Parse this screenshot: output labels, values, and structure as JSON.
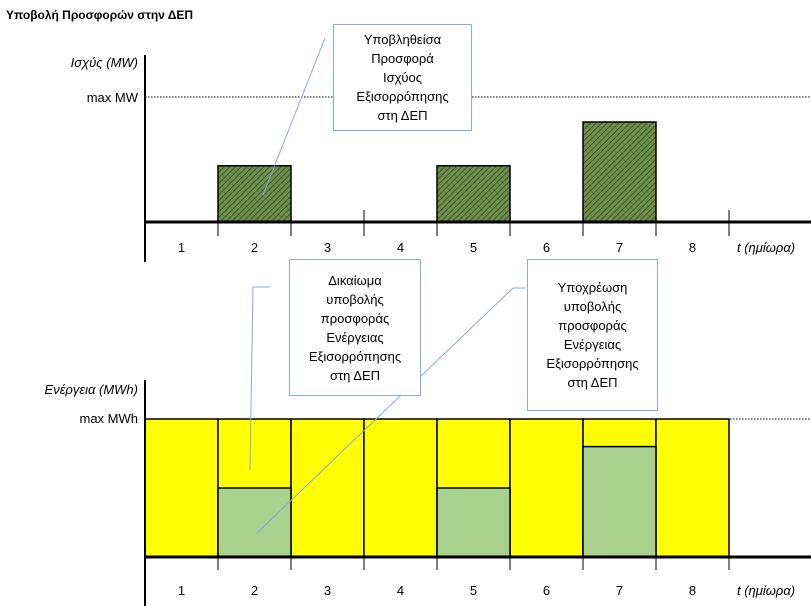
{
  "title": "Υποβολή Προσφορών στην ΔΕΠ",
  "colors": {
    "bid_fill": "#5a7a3c",
    "energy_fill": "#ffff00",
    "energy_bid_fill": "#a9d18e",
    "annotation_border": "#8eaadb",
    "leader_line": "#8eaadb",
    "axis": "#000000"
  },
  "chart_data": [
    {
      "type": "bar",
      "ylabel": "Ισχύς (MW)",
      "xlabel": "t (ημίωρα)",
      "max_label": "max MW",
      "categories": [
        "1",
        "2",
        "3",
        "4",
        "5",
        "6",
        "7",
        "8"
      ],
      "ymax": 1.0,
      "series": [
        {
          "values": [
            0,
            0.45,
            0,
            0,
            0.45,
            0,
            0.8,
            0
          ]
        }
      ],
      "annotation": "Υποβληθείσα\nΠροσφορά\nΙσχύος\nΕξισορρόπησης\nστη ΔΕΠ"
    },
    {
      "type": "bar",
      "ylabel": "Ενέργεια (MWh)",
      "xlabel": "t (ημίωρα)",
      "max_label": "max MWh",
      "categories": [
        "1",
        "2",
        "3",
        "4",
        "5",
        "6",
        "7",
        "8"
      ],
      "ymax": 1.0,
      "series": [
        {
          "values": [
            1,
            1,
            1,
            1,
            1,
            1,
            1,
            1
          ]
        },
        {
          "values": [
            0,
            0.5,
            0,
            0,
            0.5,
            0,
            0.8,
            0
          ]
        }
      ],
      "annotations": [
        "Δικαίωμα\nυποβολής\nπροσφοράς\nΕνέργειας\nΕξισορρόπησης\nστη ΔΕΠ",
        "Υποχρέωση\nυποβολής\nπροσφοράς\nΕνέργειας\nΕξισορρόπησης\nστη ΔΕΠ"
      ]
    }
  ]
}
